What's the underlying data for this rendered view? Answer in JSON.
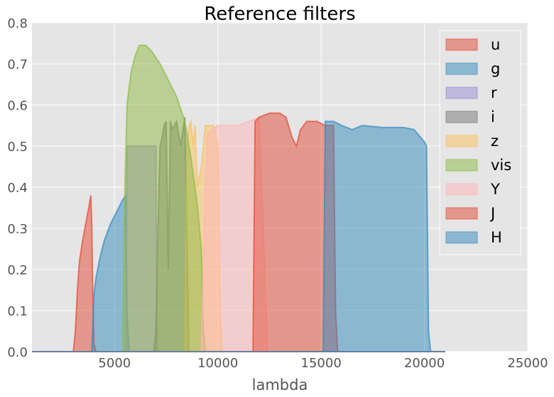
{
  "chart_data": {
    "type": "area",
    "title": "Reference filters",
    "xlabel": "lambda",
    "ylabel": "",
    "xlim": [
      1000,
      25000
    ],
    "ylim": [
      0,
      0.8
    ],
    "xticks": [
      5000,
      10000,
      15000,
      20000,
      25000
    ],
    "yticks": [
      0.0,
      0.1,
      0.2,
      0.3,
      0.4,
      0.5,
      0.6,
      0.7,
      0.8
    ],
    "xtick_labels": [
      "5000",
      "10000",
      "15000",
      "20000",
      "25000"
    ],
    "ytick_labels": [
      "0.0",
      "0.1",
      "0.2",
      "0.3",
      "0.4",
      "0.5",
      "0.6",
      "0.7",
      "0.8"
    ],
    "grid": true,
    "legend_position": "top-right",
    "background": "#e5e5e5",
    "series": [
      {
        "name": "u",
        "color": "#e24a33",
        "points": [
          [
            1000,
            0
          ],
          [
            3000,
            0
          ],
          [
            3100,
            0.05
          ],
          [
            3200,
            0.15
          ],
          [
            3300,
            0.22
          ],
          [
            3450,
            0.27
          ],
          [
            3600,
            0.31
          ],
          [
            3750,
            0.35
          ],
          [
            3850,
            0.38
          ],
          [
            3900,
            0.3
          ],
          [
            3950,
            0.12
          ],
          [
            4000,
            0.02
          ],
          [
            4100,
            0
          ],
          [
            21000,
            0
          ]
        ]
      },
      {
        "name": "g",
        "color": "#348abd",
        "points": [
          [
            1000,
            0
          ],
          [
            3900,
            0
          ],
          [
            4000,
            0.14
          ],
          [
            4100,
            0.18
          ],
          [
            4300,
            0.23
          ],
          [
            4500,
            0.27
          ],
          [
            4800,
            0.31
          ],
          [
            5100,
            0.34
          ],
          [
            5400,
            0.37
          ],
          [
            5550,
            0.38
          ],
          [
            5600,
            0.1
          ],
          [
            5700,
            0
          ],
          [
            21000,
            0
          ]
        ]
      },
      {
        "name": "r",
        "color": "#988ed5",
        "points": [
          [
            1000,
            0
          ],
          [
            5550,
            0
          ],
          [
            5600,
            0.5
          ],
          [
            7000,
            0.5
          ],
          [
            7050,
            0
          ],
          [
            21000,
            0
          ]
        ]
      },
      {
        "name": "i",
        "color": "#777777",
        "points": [
          [
            1000,
            0
          ],
          [
            6900,
            0
          ],
          [
            7000,
            0.05
          ],
          [
            7100,
            0.3
          ],
          [
            7200,
            0.5
          ],
          [
            7300,
            0.52
          ],
          [
            7400,
            0.55
          ],
          [
            7500,
            0.56
          ],
          [
            7600,
            0.2
          ],
          [
            7700,
            0.56
          ],
          [
            7800,
            0.54
          ],
          [
            8000,
            0.56
          ],
          [
            8200,
            0.5
          ],
          [
            8400,
            0.57
          ],
          [
            8500,
            0.3
          ],
          [
            8600,
            0
          ],
          [
            21000,
            0
          ]
        ]
      },
      {
        "name": "z",
        "color": "#fbc15e",
        "points": [
          [
            1000,
            0
          ],
          [
            8400,
            0
          ],
          [
            8500,
            0.5
          ],
          [
            8600,
            0.55
          ],
          [
            8700,
            0.56
          ],
          [
            8800,
            0.5
          ],
          [
            8900,
            0.55
          ],
          [
            9000,
            0.4
          ],
          [
            9200,
            0.45
          ],
          [
            9400,
            0.55
          ],
          [
            9600,
            0.55
          ],
          [
            9800,
            0.55
          ],
          [
            10000,
            0.5
          ],
          [
            10100,
            0.1
          ],
          [
            10200,
            0
          ],
          [
            21000,
            0
          ]
        ]
      },
      {
        "name": "vis",
        "color": "#8eba42",
        "points": [
          [
            1000,
            0
          ],
          [
            5400,
            0
          ],
          [
            5500,
            0.4
          ],
          [
            5600,
            0.6
          ],
          [
            5800,
            0.68
          ],
          [
            6000,
            0.72
          ],
          [
            6200,
            0.745
          ],
          [
            6500,
            0.745
          ],
          [
            6800,
            0.73
          ],
          [
            7200,
            0.7
          ],
          [
            7600,
            0.66
          ],
          [
            8000,
            0.62
          ],
          [
            8400,
            0.56
          ],
          [
            8700,
            0.47
          ],
          [
            9000,
            0.36
          ],
          [
            9200,
            0.25
          ],
          [
            9300,
            0.05
          ],
          [
            9400,
            0
          ],
          [
            21000,
            0
          ]
        ]
      },
      {
        "name": "Y",
        "color": "#ffb5b8",
        "points": [
          [
            1000,
            0
          ],
          [
            9200,
            0
          ],
          [
            9400,
            0.4
          ],
          [
            9500,
            0.53
          ],
          [
            10000,
            0.55
          ],
          [
            11000,
            0.55
          ],
          [
            11500,
            0.56
          ],
          [
            12000,
            0.57
          ],
          [
            12200,
            0.3
          ],
          [
            12400,
            0
          ],
          [
            21000,
            0
          ]
        ]
      },
      {
        "name": "J",
        "color": "#e24a33",
        "points": [
          [
            1000,
            0
          ],
          [
            11700,
            0
          ],
          [
            11800,
            0.56
          ],
          [
            12000,
            0.57
          ],
          [
            12500,
            0.58
          ],
          [
            13000,
            0.58
          ],
          [
            13300,
            0.57
          ],
          [
            13600,
            0.52
          ],
          [
            13800,
            0.5
          ],
          [
            14000,
            0.54
          ],
          [
            14300,
            0.56
          ],
          [
            14800,
            0.56
          ],
          [
            15200,
            0.55
          ],
          [
            15600,
            0.55
          ],
          [
            15700,
            0.1
          ],
          [
            15800,
            0
          ],
          [
            21000,
            0
          ]
        ]
      },
      {
        "name": "H",
        "color": "#348abd",
        "points": [
          [
            1000,
            0
          ],
          [
            15100,
            0
          ],
          [
            15200,
            0.56
          ],
          [
            15600,
            0.56
          ],
          [
            16000,
            0.55
          ],
          [
            16500,
            0.54
          ],
          [
            17000,
            0.55
          ],
          [
            18000,
            0.545
          ],
          [
            19000,
            0.545
          ],
          [
            19500,
            0.54
          ],
          [
            20000,
            0.51
          ],
          [
            20100,
            0.5
          ],
          [
            20200,
            0.05
          ],
          [
            20300,
            0
          ],
          [
            21000,
            0
          ]
        ]
      }
    ]
  }
}
